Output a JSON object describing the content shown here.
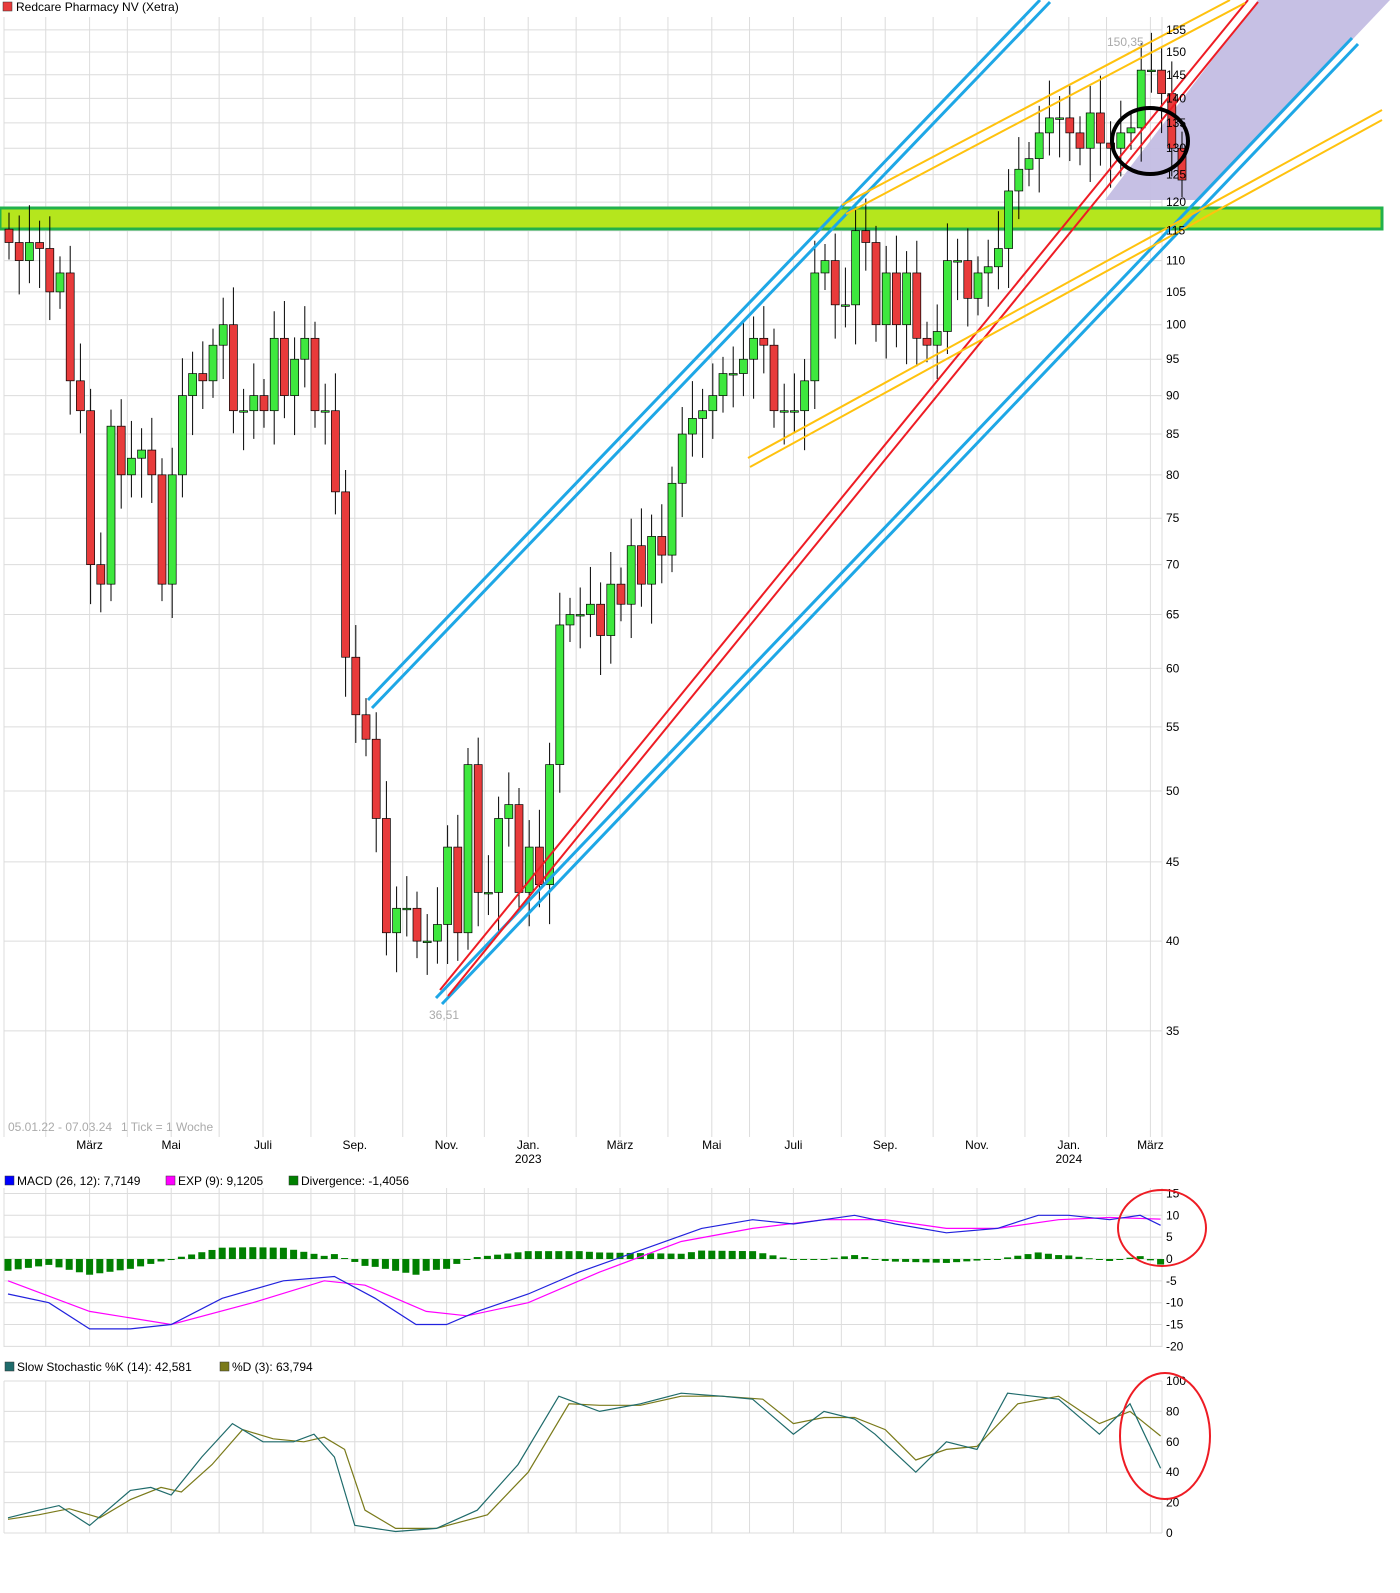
{
  "header": {
    "title": "Redcare Pharmacy NV (Xetra)",
    "title_color": "#e83b3b"
  },
  "footer_info": {
    "range": "05.01.22 - 07.03.24",
    "tick": "1 Tick = 1 Woche"
  },
  "x_labels": [
    {
      "label": "März",
      "week": 8
    },
    {
      "label": "Mai",
      "week": 16
    },
    {
      "label": "Juli",
      "week": 25
    },
    {
      "label": "Sep.",
      "week": 34
    },
    {
      "label": "Nov.",
      "week": 43
    },
    {
      "label": "Jan.",
      "sub": "2023",
      "week": 51
    },
    {
      "label": "März",
      "week": 60
    },
    {
      "label": "Mai",
      "week": 69
    },
    {
      "label": "Juli",
      "week": 77
    },
    {
      "label": "Sep.",
      "week": 86
    },
    {
      "label": "Nov.",
      "week": 95
    },
    {
      "label": "Jan.",
      "sub": "2024",
      "week": 104
    },
    {
      "label": "März",
      "week": 112
    }
  ],
  "chart_data": [
    {
      "type": "candlestick",
      "title": "Redcare Pharmacy NV (Xetra)",
      "yscale": "log",
      "ylim": [
        33,
        160
      ],
      "yticks": [
        35,
        40,
        45,
        50,
        55,
        60,
        65,
        70,
        75,
        80,
        85,
        90,
        95,
        100,
        105,
        110,
        115,
        120,
        125,
        130,
        135,
        140,
        145,
        150,
        155
      ],
      "annotations": {
        "high_label": "150,35",
        "low_label": "36,51"
      },
      "support_zone": [
        115,
        120
      ],
      "closes": [
        113,
        110,
        113,
        112,
        105,
        108,
        92,
        88,
        70,
        68,
        86,
        80,
        82,
        83,
        80,
        68,
        80,
        90,
        93,
        92,
        97,
        100,
        88,
        88,
        90,
        88,
        98,
        90,
        95,
        98,
        88,
        88,
        78,
        61,
        56,
        54,
        48,
        40.5,
        42,
        42,
        40,
        40,
        41,
        46,
        40.5,
        52,
        43,
        43,
        48,
        49,
        43,
        46,
        43.5,
        52,
        64,
        65,
        65,
        66,
        63,
        68,
        66,
        72,
        68,
        73,
        71,
        79,
        85,
        87,
        88,
        90,
        93,
        93,
        95,
        98,
        97,
        88,
        88,
        88,
        92,
        108,
        110,
        103,
        103,
        115,
        113,
        100,
        108,
        100,
        108,
        98,
        97,
        99,
        110,
        110,
        104,
        108,
        109,
        112,
        122,
        126,
        128,
        133,
        136,
        136,
        133,
        130,
        137,
        131,
        130,
        133,
        134,
        146,
        146,
        141,
        130,
        124
      ],
      "colors": {
        "up": "#3ee83e",
        "down": "#e83b3b",
        "band": "#b5e61d",
        "band_border": "#22b14c",
        "channel": "#1ea7e6",
        "trend": "#ee1c24",
        "fan": "#ffc20e",
        "zone": "#c3bde3"
      }
    },
    {
      "type": "line",
      "title": "MACD",
      "legend": [
        {
          "label": "MACD (26, 12): 7,7149",
          "color": "#0000ff"
        },
        {
          "label": "EXP (9): 9,1205",
          "color": "#ff00ff"
        },
        {
          "label": "Divergence: -1,4056",
          "color": "#008000"
        }
      ],
      "ylim": [
        -20,
        15
      ],
      "yticks": [
        15,
        10,
        5,
        0,
        -5,
        -10,
        -15,
        -20
      ],
      "macd": [
        [
          0,
          -8
        ],
        [
          4,
          -10
        ],
        [
          8,
          -16
        ],
        [
          12,
          -16
        ],
        [
          16,
          -15
        ],
        [
          21,
          -9
        ],
        [
          27,
          -5
        ],
        [
          32,
          -4
        ],
        [
          36,
          -9
        ],
        [
          40,
          -15
        ],
        [
          43,
          -15
        ],
        [
          46,
          -12
        ],
        [
          51,
          -8
        ],
        [
          56,
          -3
        ],
        [
          62,
          2
        ],
        [
          68,
          7
        ],
        [
          73,
          9
        ],
        [
          77,
          8
        ],
        [
          83,
          10
        ],
        [
          87,
          8
        ],
        [
          92,
          6
        ],
        [
          97,
          7
        ],
        [
          101,
          10
        ],
        [
          104,
          10
        ],
        [
          108,
          9
        ],
        [
          111,
          10
        ],
        [
          113,
          7.7149
        ]
      ],
      "signal": [
        [
          0,
          -5
        ],
        [
          8,
          -12
        ],
        [
          16,
          -15
        ],
        [
          24,
          -10
        ],
        [
          31,
          -5
        ],
        [
          35,
          -6
        ],
        [
          41,
          -12
        ],
        [
          45,
          -13
        ],
        [
          51,
          -10
        ],
        [
          58,
          -3
        ],
        [
          66,
          4
        ],
        [
          73,
          7
        ],
        [
          80,
          9
        ],
        [
          86,
          9
        ],
        [
          92,
          7
        ],
        [
          97,
          7
        ],
        [
          103,
          9
        ],
        [
          108,
          9.5
        ],
        [
          113,
          9.1205
        ]
      ]
    },
    {
      "type": "line",
      "title": "Slow Stochastic",
      "legend": [
        {
          "label": "Slow Stochastic %K (14): 42,581",
          "color": "#1f6b6b"
        },
        {
          "label": "%D (3): 63,794",
          "color": "#7a7a1a"
        }
      ],
      "ylim": [
        0,
        100
      ],
      "yticks": [
        100,
        80,
        60,
        40,
        20,
        0
      ],
      "k": [
        [
          0,
          10
        ],
        [
          3,
          15
        ],
        [
          5,
          18
        ],
        [
          8,
          5
        ],
        [
          12,
          28
        ],
        [
          14,
          30
        ],
        [
          16,
          25
        ],
        [
          19,
          50
        ],
        [
          22,
          72
        ],
        [
          25,
          60
        ],
        [
          28,
          60
        ],
        [
          30,
          65
        ],
        [
          32,
          50
        ],
        [
          34,
          5
        ],
        [
          38,
          1
        ],
        [
          42,
          3
        ],
        [
          46,
          15
        ],
        [
          50,
          45
        ],
        [
          54,
          90
        ],
        [
          58,
          80
        ],
        [
          62,
          85
        ],
        [
          66,
          92
        ],
        [
          70,
          90
        ],
        [
          73,
          88
        ],
        [
          77,
          65
        ],
        [
          80,
          80
        ],
        [
          83,
          75
        ],
        [
          85,
          65
        ],
        [
          89,
          40
        ],
        [
          92,
          60
        ],
        [
          95,
          55
        ],
        [
          98,
          92
        ],
        [
          103,
          88
        ],
        [
          107,
          65
        ],
        [
          110,
          85
        ],
        [
          113,
          42.581
        ]
      ],
      "d": [
        [
          0,
          9
        ],
        [
          3,
          12
        ],
        [
          6,
          16
        ],
        [
          9,
          10
        ],
        [
          12,
          22
        ],
        [
          15,
          30
        ],
        [
          17,
          27
        ],
        [
          20,
          45
        ],
        [
          23,
          68
        ],
        [
          26,
          62
        ],
        [
          29,
          60
        ],
        [
          31,
          63
        ],
        [
          33,
          55
        ],
        [
          35,
          15
        ],
        [
          38,
          3
        ],
        [
          42,
          3
        ],
        [
          47,
          12
        ],
        [
          51,
          40
        ],
        [
          55,
          85
        ],
        [
          58,
          84
        ],
        [
          62,
          84
        ],
        [
          66,
          90
        ],
        [
          70,
          90
        ],
        [
          74,
          88
        ],
        [
          77,
          72
        ],
        [
          80,
          76
        ],
        [
          83,
          76
        ],
        [
          86,
          68
        ],
        [
          89,
          48
        ],
        [
          92,
          55
        ],
        [
          95,
          57
        ],
        [
          99,
          85
        ],
        [
          103,
          90
        ],
        [
          107,
          72
        ],
        [
          110,
          80
        ],
        [
          113,
          63.794
        ]
      ]
    }
  ]
}
